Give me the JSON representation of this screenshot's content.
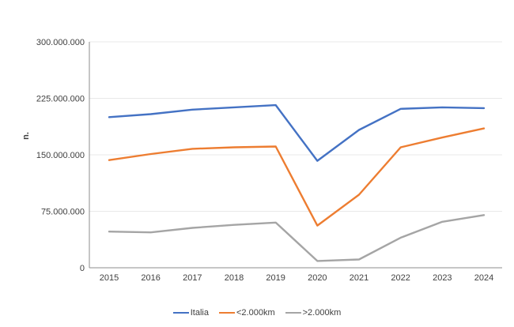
{
  "chart_data": {
    "type": "line",
    "title": "",
    "xlabel": "",
    "ylabel": "n.",
    "x_categories": [
      "2015",
      "2016",
      "2017",
      "2018",
      "2019",
      "2020",
      "2021",
      "2022",
      "2023",
      "2024"
    ],
    "ylim": [
      0,
      300000000
    ],
    "y_tick_values": [
      0,
      75000000,
      150000000,
      225000000,
      300000000
    ],
    "y_tick_labels": [
      "0",
      "75.000.000",
      "150.000.000",
      "225.000.000",
      "300.000.000"
    ],
    "grid": true,
    "legend_position": "bottom",
    "series": [
      {
        "name": "Italia",
        "color": "#4472C4",
        "values": [
          200000000,
          204000000,
          210000000,
          213000000,
          216000000,
          142000000,
          183000000,
          211000000,
          213000000,
          212000000
        ]
      },
      {
        "name": "<2.000km",
        "color": "#ED7D31",
        "values": [
          143000000,
          151000000,
          158000000,
          160000000,
          161000000,
          56000000,
          97000000,
          160000000,
          173000000,
          185000000
        ]
      },
      {
        "name": ">2.000km",
        "color": "#A5A5A5",
        "values": [
          48000000,
          47000000,
          53000000,
          57000000,
          60000000,
          9000000,
          11000000,
          40000000,
          61000000,
          70000000
        ]
      }
    ],
    "axis_color": "#8E8E8E",
    "gridline_color": "#E8E8E8",
    "text_color": "#404040"
  }
}
